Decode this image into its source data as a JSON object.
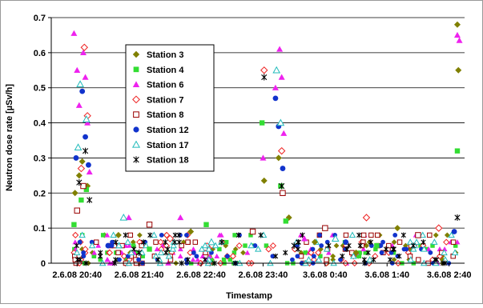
{
  "chart_data": {
    "type": "scatter",
    "title": "",
    "xlabel": "Timestamp",
    "ylabel": "Neutron dose rate [µSv/h]",
    "ylim": [
      0,
      0.7
    ],
    "yticks": [
      "0",
      "0.1",
      "0.2",
      "0.3",
      "0.4",
      "0.5",
      "0.6",
      "0.7"
    ],
    "xticks": [
      "2.6.08 20:40",
      "2.6.08 21:40",
      "2.6.08 22:40",
      "2.6.08 23:40",
      "3.6.08 0:40",
      "3.6.08 1:40",
      "3.6.08 2:40"
    ],
    "xlim": [
      "2.6.08 20:15",
      "3.6.08 2:55"
    ],
    "grid": true,
    "legend_position": "upper-left",
    "series": [
      {
        "name": "Station 3",
        "marker": "diamond-filled",
        "color": "#808000",
        "points": [
          {
            "x": "2.6.08 20:38",
            "y": 0.2
          },
          {
            "x": "2.6.08 20:42",
            "y": 0.25
          },
          {
            "x": "2.6.08 20:45",
            "y": 0.29
          },
          {
            "x": "2.6.08 20:50",
            "y": 0.22
          },
          {
            "x": "2.6.08 21:20",
            "y": 0.08
          },
          {
            "x": "2.6.08 22:30",
            "y": 0.09
          },
          {
            "x": "2.6.08 23:41",
            "y": 0.235
          },
          {
            "x": "2.6.08 23:55",
            "y": 0.3
          },
          {
            "x": "3.6.08 0:05",
            "y": 0.13
          },
          {
            "x": "3.6.08 1:50",
            "y": 0.1
          },
          {
            "x": "3.6.08 2:48",
            "y": 0.68
          },
          {
            "x": "3.6.08 2:49",
            "y": 0.55
          },
          {
            "x": "3.6.08 0:30",
            "y": 0.06
          },
          {
            "x": "3.6.08 1:10",
            "y": 0.03
          }
        ]
      },
      {
        "name": "Station 4",
        "marker": "square-filled",
        "color": "#33dd33",
        "points": [
          {
            "x": "2.6.08 20:37",
            "y": 0.11
          },
          {
            "x": "2.6.08 20:44",
            "y": 0.18
          },
          {
            "x": "2.6.08 20:49",
            "y": 0.21
          },
          {
            "x": "2.6.08 22:45",
            "y": 0.11
          },
          {
            "x": "2.6.08 23:39",
            "y": 0.4
          },
          {
            "x": "2.6.08 23:57",
            "y": 0.22
          },
          {
            "x": "3.6.08 0:02",
            "y": 0.12
          },
          {
            "x": "3.6.08 2:48",
            "y": 0.32
          },
          {
            "x": "3.6.08 1:30",
            "y": 0.05
          },
          {
            "x": "2.6.08 21:50",
            "y": 0.04
          }
        ]
      },
      {
        "name": "Station 6",
        "marker": "triangle-filled",
        "color": "#ee22ee",
        "points": [
          {
            "x": "2.6.08 20:37",
            "y": 0.655
          },
          {
            "x": "2.6.08 20:40",
            "y": 0.55
          },
          {
            "x": "2.6.08 20:42",
            "y": 0.45
          },
          {
            "x": "2.6.08 20:46",
            "y": 0.6
          },
          {
            "x": "2.6.08 20:48",
            "y": 0.53
          },
          {
            "x": "2.6.08 20:50",
            "y": 0.4
          },
          {
            "x": "2.6.08 20:52",
            "y": 0.26
          },
          {
            "x": "2.6.08 21:30",
            "y": 0.13
          },
          {
            "x": "2.6.08 22:20",
            "y": 0.13
          },
          {
            "x": "2.6.08 23:40",
            "y": 0.3
          },
          {
            "x": "2.6.08 23:52",
            "y": 0.5
          },
          {
            "x": "2.6.08 23:56",
            "y": 0.61
          },
          {
            "x": "2.6.08 23:58",
            "y": 0.53
          },
          {
            "x": "3.6.08 0:00",
            "y": 0.37
          },
          {
            "x": "3.6.08 2:50",
            "y": 0.635
          },
          {
            "x": "3.6.08 2:48",
            "y": 0.65
          },
          {
            "x": "3.6.08 0:20",
            "y": 0.07
          }
        ]
      },
      {
        "name": "Station 7",
        "marker": "diamond-open",
        "color": "#ee2222",
        "points": [
          {
            "x": "2.6.08 20:47",
            "y": 0.615
          },
          {
            "x": "2.6.08 20:50",
            "y": 0.42
          },
          {
            "x": "2.6.08 20:44",
            "y": 0.27
          },
          {
            "x": "2.6.08 23:41",
            "y": 0.55
          },
          {
            "x": "2.6.08 23:58",
            "y": 0.32
          },
          {
            "x": "3.6.08 1:20",
            "y": 0.13
          },
          {
            "x": "3.6.08 2:30",
            "y": 0.1
          },
          {
            "x": "2.6.08 22:10",
            "y": 0.07
          }
        ]
      },
      {
        "name": "Station 8",
        "marker": "square-open",
        "color": "#990000",
        "points": [
          {
            "x": "2.6.08 20:40",
            "y": 0.15
          },
          {
            "x": "2.6.08 20:46",
            "y": 0.22
          },
          {
            "x": "2.6.08 21:50",
            "y": 0.11
          },
          {
            "x": "2.6.08 23:30",
            "y": 0.09
          },
          {
            "x": "3.6.08 0:40",
            "y": 0.1
          },
          {
            "x": "3.6.08 2:10",
            "y": 0.08
          },
          {
            "x": "2.6.08 23:59",
            "y": 0.2
          }
        ]
      },
      {
        "name": "Station 12",
        "marker": "circle-filled",
        "color": "#1133cc",
        "points": [
          {
            "x": "2.6.08 20:39",
            "y": 0.3
          },
          {
            "x": "2.6.08 20:45",
            "y": 0.49
          },
          {
            "x": "2.6.08 20:48",
            "y": 0.36
          },
          {
            "x": "2.6.08 20:51",
            "y": 0.28
          },
          {
            "x": "2.6.08 23:52",
            "y": 0.47
          },
          {
            "x": "2.6.08 23:55",
            "y": 0.39
          },
          {
            "x": "2.6.08 23:59",
            "y": 0.27
          },
          {
            "x": "3.6.08 1:00",
            "y": 0.06
          },
          {
            "x": "3.6.08 2:45",
            "y": 0.09
          },
          {
            "x": "2.6.08 21:10",
            "y": 0.05
          }
        ]
      },
      {
        "name": "Station 17",
        "marker": "triangle-open",
        "color": "#22bbbb",
        "points": [
          {
            "x": "2.6.08 20:43",
            "y": 0.51
          },
          {
            "x": "2.6.08 20:49",
            "y": 0.41
          },
          {
            "x": "2.6.08 20:41",
            "y": 0.33
          },
          {
            "x": "2.6.08 21:25",
            "y": 0.13
          },
          {
            "x": "2.6.08 23:53",
            "y": 0.55
          },
          {
            "x": "2.6.08 23:57",
            "y": 0.4
          },
          {
            "x": "3.6.08 0:50",
            "y": 0.07
          },
          {
            "x": "2.6.08 22:50",
            "y": 0.06
          }
        ]
      },
      {
        "name": "Station 18",
        "marker": "star",
        "color": "#000000",
        "points": [
          {
            "x": "2.6.08 20:42",
            "y": 0.23
          },
          {
            "x": "2.6.08 20:48",
            "y": 0.32
          },
          {
            "x": "2.6.08 20:52",
            "y": 0.18
          },
          {
            "x": "2.6.08 23:41",
            "y": 0.53
          },
          {
            "x": "2.6.08 23:58",
            "y": 0.22
          },
          {
            "x": "3.6.08 2:48",
            "y": 0.13
          },
          {
            "x": "3.6.08 0:10",
            "y": 0.05
          },
          {
            "x": "2.6.08 21:40",
            "y": 0.03
          }
        ]
      }
    ]
  }
}
